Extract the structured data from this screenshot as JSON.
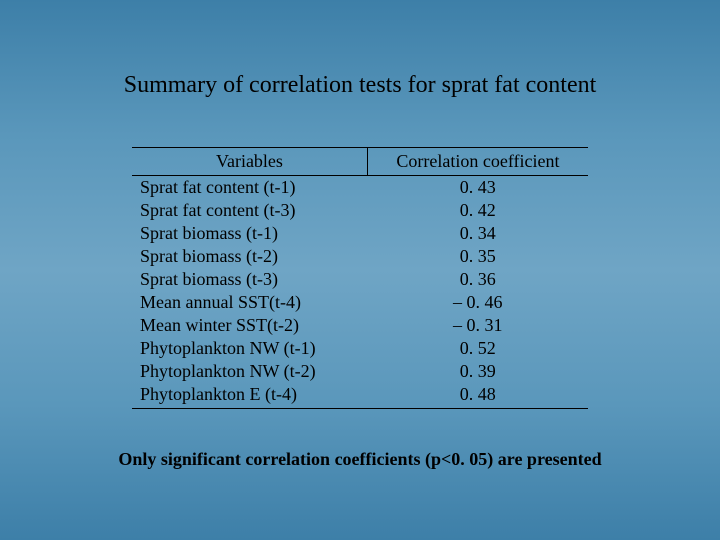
{
  "title": "Summary of correlation tests for sprat fat content",
  "table": {
    "type": "table",
    "background_color": "transparent",
    "text_color": "#000000",
    "border_color": "#000000",
    "font_family": "Times New Roman",
    "header_fontsize": 18,
    "body_fontsize": 18,
    "columns": [
      "Variables",
      "Correlation coefficient"
    ],
    "rows": [
      {
        "variable": "Sprat fat content (t-1)",
        "value": "0. 43"
      },
      {
        "variable": "Sprat fat content (t-3)",
        "value": "0. 42"
      },
      {
        "variable": "Sprat biomass (t-1)",
        "value": "0. 34"
      },
      {
        "variable": "Sprat biomass (t-2)",
        "value": "0. 35"
      },
      {
        "variable": "Sprat biomass (t-3)",
        "value": "0. 36"
      },
      {
        "variable": "Mean annual SST(t-4)",
        "value": "– 0. 46"
      },
      {
        "variable": "Mean winter SST(t-2)",
        "value": "– 0. 31"
      },
      {
        "variable": "Phytoplankton NW (t-1)",
        "value": "0. 52"
      },
      {
        "variable": "Phytoplankton NW (t-2)",
        "value": "0. 39"
      },
      {
        "variable": "Phytoplankton E (t-4)",
        "value": "0. 48"
      }
    ]
  },
  "footnote": "Only significant correlation coefficients (p<0. 05) are presented",
  "style": {
    "slide_width": 720,
    "slide_height": 540,
    "background_gradient": [
      "#3d7fa8",
      "#5a97bb",
      "#6fa5c5",
      "#5a97bb",
      "#3d7fa8"
    ],
    "title_fontsize": 24,
    "title_color": "#000000",
    "footnote_fontsize": 18,
    "footnote_weight": "bold",
    "font_family": "Times New Roman"
  }
}
